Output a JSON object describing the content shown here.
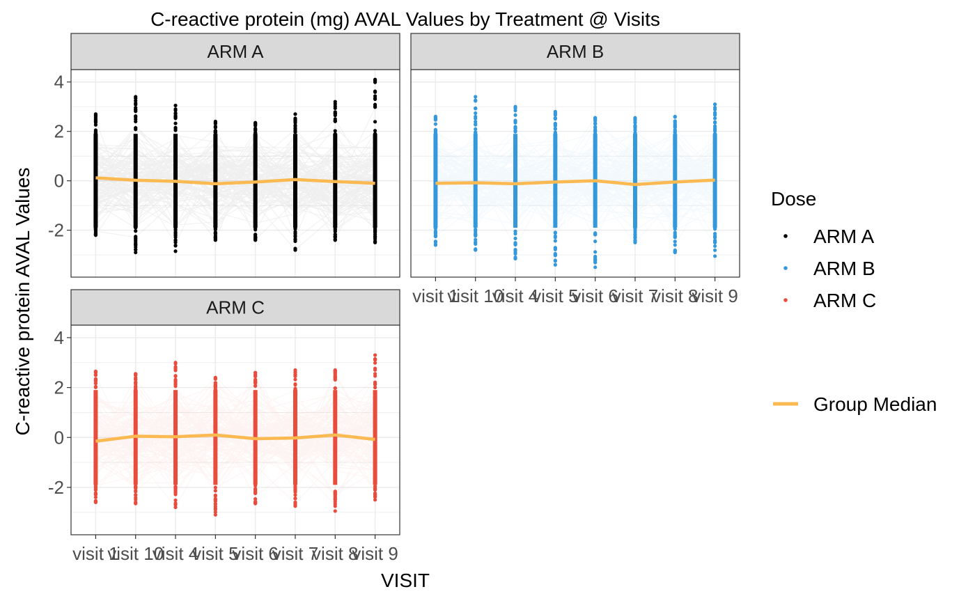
{
  "chart_data": {
    "type": "line",
    "title": "C-reactive protein (mg) AVAL Values by Treatment @ Visits",
    "xlabel": "VISIT",
    "ylabel": "C-reactive protein AVAL Values",
    "x_tick_labels": [
      "visit 1",
      "visit 10",
      "visit 4",
      "visit 5",
      "visit 6",
      "visit 7",
      "visit 8",
      "visit 9"
    ],
    "y_ticks": [
      -2,
      0,
      2,
      4
    ],
    "ylim": [
      -3.9,
      4.5
    ],
    "grid": true,
    "legend": {
      "position": "right",
      "title": "Dose",
      "entries": [
        "ARM A",
        "ARM B",
        "ARM C"
      ],
      "median_label": "Group Median"
    },
    "colors": {
      "ARM A": "#000000",
      "ARM B": "#3498db",
      "ARM C": "#e74c3c",
      "median": "#fbb951",
      "strip_bg": "#d9d9d9",
      "grid": "#ebebeb"
    },
    "panels": [
      {
        "name": "ARM A",
        "point_range": {
          "min": [
            -2.2,
            -2.9,
            -2.85,
            -2.4,
            -2.4,
            -2.8,
            -2.4,
            -2.5
          ],
          "max": [
            2.7,
            3.4,
            3.05,
            2.4,
            2.35,
            2.7,
            3.2,
            4.1
          ]
        },
        "median": [
          0.12,
          0.02,
          -0.02,
          -0.12,
          -0.05,
          0.05,
          -0.03,
          -0.1
        ]
      },
      {
        "name": "ARM B",
        "point_range": {
          "min": [
            -2.6,
            -2.8,
            -3.15,
            -3.4,
            -3.5,
            -2.5,
            -2.9,
            -3.05
          ],
          "max": [
            2.6,
            3.4,
            3.0,
            2.8,
            2.55,
            2.55,
            2.6,
            3.1
          ]
        },
        "median": [
          -0.1,
          -0.08,
          -0.12,
          -0.05,
          0.0,
          -0.15,
          -0.05,
          0.03
        ]
      },
      {
        "name": "ARM C",
        "point_range": {
          "min": [
            -2.6,
            -2.65,
            -2.8,
            -3.1,
            -2.65,
            -2.75,
            -2.95,
            -2.5
          ],
          "max": [
            2.65,
            2.55,
            3.0,
            2.4,
            2.6,
            2.7,
            2.7,
            3.3
          ]
        },
        "median": [
          -0.15,
          0.05,
          0.03,
          0.1,
          -0.05,
          -0.02,
          0.1,
          -0.08
        ]
      }
    ]
  }
}
